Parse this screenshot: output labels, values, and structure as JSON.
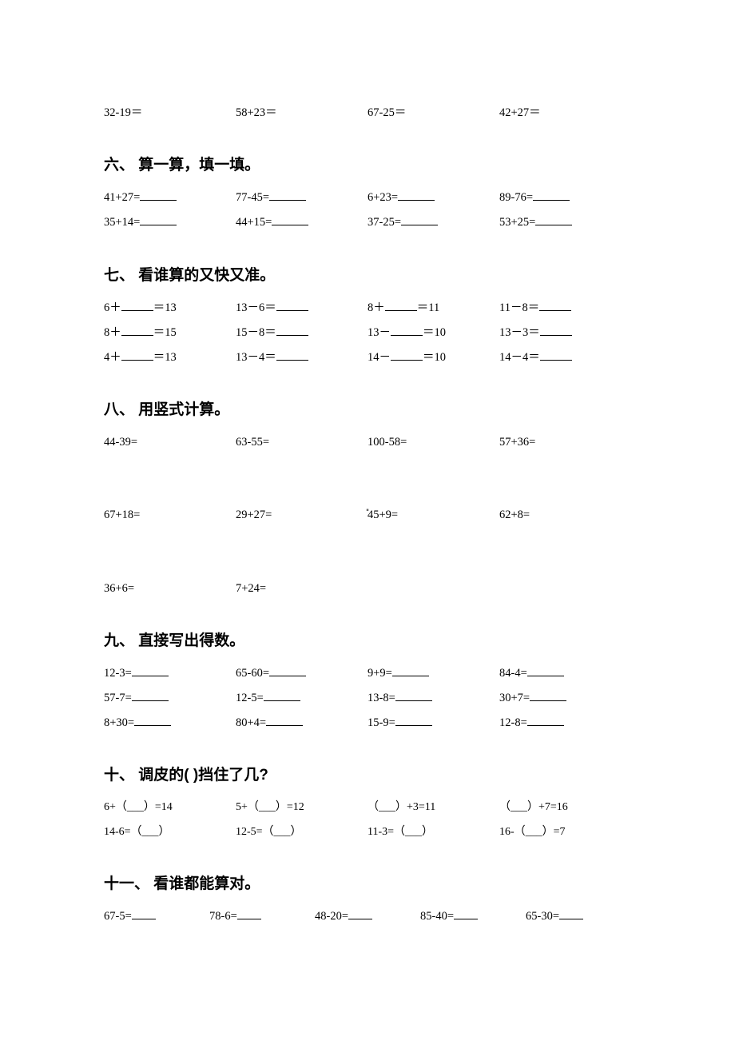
{
  "sec5_row": [
    "32-19＝",
    "58+23＝",
    "67-25＝",
    "42+27＝"
  ],
  "sec6": {
    "title": "六、 算一算，填一填。",
    "rows": [
      [
        "41+27=",
        "77-45=",
        "6+23=",
        "89-76="
      ],
      [
        "35+14=",
        "44+15=",
        "37-25=",
        "53+25="
      ]
    ]
  },
  "sec7": {
    "title": "七、 看谁算的又快又准。",
    "rows": [
      [
        {
          "pre": "6＋",
          "post": "＝13"
        },
        {
          "pre": "13－6＝",
          "post": ""
        },
        {
          "pre": "8＋",
          "post": "＝11"
        },
        {
          "pre": "11－8＝",
          "post": ""
        }
      ],
      [
        {
          "pre": "8＋",
          "post": "＝15"
        },
        {
          "pre": "15－8＝",
          "post": ""
        },
        {
          "pre": "13－",
          "post": "＝10"
        },
        {
          "pre": "13－3＝",
          "post": ""
        }
      ],
      [
        {
          "pre": "4＋",
          "post": "＝13"
        },
        {
          "pre": "13－4＝",
          "post": ""
        },
        {
          "pre": "14－",
          "post": "＝10"
        },
        {
          "pre": "14－4＝",
          "post": ""
        }
      ]
    ]
  },
  "sec8": {
    "title": "八、 用竖式计算。",
    "rows": [
      [
        "44-39=",
        "63-55=",
        "100-58=",
        "57+36="
      ],
      [
        "67+18=",
        "29+27=",
        "45+9=",
        "62+8="
      ],
      [
        "36+6=",
        "7+24=",
        "",
        ""
      ]
    ],
    "dot": "▪"
  },
  "sec9": {
    "title": "九、 直接写出得数。",
    "rows": [
      [
        "12-3=",
        "65-60=",
        "9+9=",
        "84-4="
      ],
      [
        "57-7=",
        "12-5=",
        "13-8=",
        "30+7="
      ],
      [
        "8+30=",
        "80+4=",
        "15-9=",
        "12-8="
      ]
    ]
  },
  "sec10": {
    "title": "十、 调皮的(   )挡住了几?",
    "rows": [
      [
        "6+（___）=14",
        "5+（___）=12",
        "（___）+3=11",
        "（___）+7=16"
      ],
      [
        "14-6=（___）",
        "12-5=（___）",
        "11-3=（___）",
        "16-（___）=7"
      ]
    ]
  },
  "sec11": {
    "title": "十一、 看谁都能算对。",
    "rows": [
      [
        "67-5=",
        "78-6=",
        "48-20=",
        "85-40=",
        "65-30="
      ]
    ]
  }
}
